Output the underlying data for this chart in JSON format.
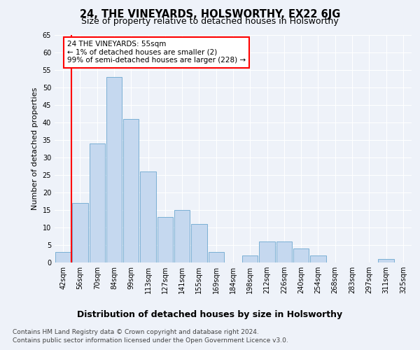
{
  "title": "24, THE VINEYARDS, HOLSWORTHY, EX22 6JG",
  "subtitle": "Size of property relative to detached houses in Holsworthy",
  "xlabel": "Distribution of detached houses by size in Holsworthy",
  "ylabel": "Number of detached properties",
  "categories": [
    "42sqm",
    "56sqm",
    "70sqm",
    "84sqm",
    "99sqm",
    "113sqm",
    "127sqm",
    "141sqm",
    "155sqm",
    "169sqm",
    "184sqm",
    "198sqm",
    "212sqm",
    "226sqm",
    "240sqm",
    "254sqm",
    "268sqm",
    "283sqm",
    "297sqm",
    "311sqm",
    "325sqm"
  ],
  "values": [
    3,
    17,
    34,
    53,
    41,
    26,
    13,
    15,
    11,
    3,
    0,
    2,
    6,
    6,
    4,
    2,
    0,
    0,
    0,
    1,
    0
  ],
  "bar_color": "#c5d8ef",
  "bar_edge_color": "#7aafd4",
  "highlight_color": "#ff0000",
  "annotation_text": "24 THE VINEYARDS: 55sqm\n← 1% of detached houses are smaller (2)\n99% of semi-detached houses are larger (228) →",
  "annotation_box_color": "#ffffff",
  "annotation_box_edge_color": "#ff0000",
  "ylim": [
    0,
    65
  ],
  "yticks": [
    0,
    5,
    10,
    15,
    20,
    25,
    30,
    35,
    40,
    45,
    50,
    55,
    60,
    65
  ],
  "footer_line1": "Contains HM Land Registry data © Crown copyright and database right 2024.",
  "footer_line2": "Contains public sector information licensed under the Open Government Licence v3.0.",
  "background_color": "#eef2f9",
  "grid_color": "#ffffff",
  "title_fontsize": 10.5,
  "subtitle_fontsize": 9,
  "xlabel_fontsize": 9,
  "ylabel_fontsize": 8,
  "tick_fontsize": 7,
  "footer_fontsize": 6.5,
  "annotation_fontsize": 7.5
}
